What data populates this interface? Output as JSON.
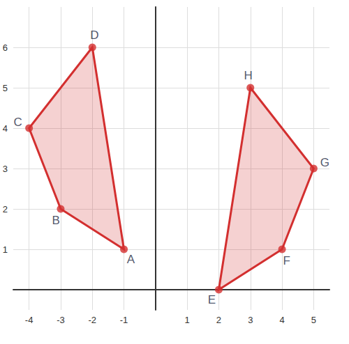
{
  "chart_data": {
    "type": "polygon",
    "xlim": [
      -4.5,
      5.5
    ],
    "ylim": [
      -0.5,
      7
    ],
    "xticks": [
      -4,
      -3,
      -2,
      -1,
      1,
      2,
      3,
      4,
      5
    ],
    "yticks": [
      1,
      2,
      3,
      4,
      5,
      6
    ],
    "grid": true,
    "color": "#d32f2f",
    "shapes": [
      {
        "vertices": [
          {
            "label": "A",
            "x": -1,
            "y": 1
          },
          {
            "label": "B",
            "x": -3,
            "y": 2
          },
          {
            "label": "C",
            "x": -4,
            "y": 4
          },
          {
            "label": "D",
            "x": -2,
            "y": 6
          }
        ]
      },
      {
        "vertices": [
          {
            "label": "E",
            "x": 2,
            "y": 0
          },
          {
            "label": "F",
            "x": 4,
            "y": 1
          },
          {
            "label": "G",
            "x": 5,
            "y": 3
          },
          {
            "label": "H",
            "x": 3,
            "y": 5
          }
        ]
      }
    ]
  }
}
